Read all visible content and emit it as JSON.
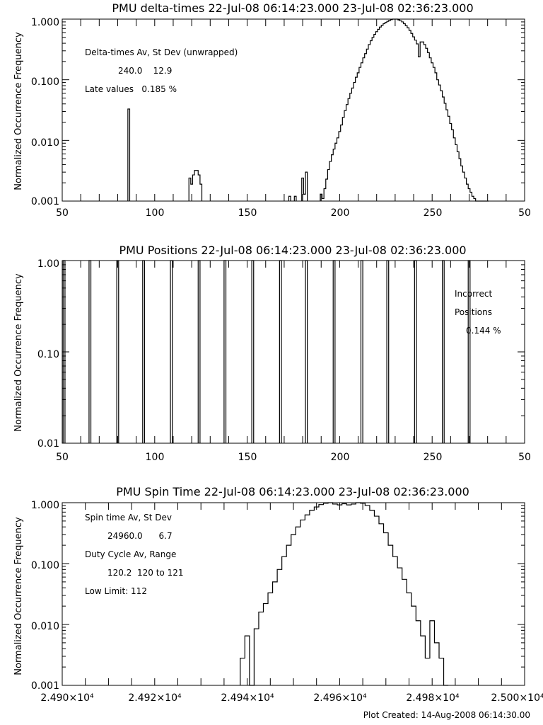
{
  "footer": "Plot Created: 14-Aug-2008 06:14:30.00",
  "chart_data": [
    {
      "type": "histogram-step",
      "title": "PMU delta-times 22-Jul-08 06:14:23.000 23-Jul-08 02:36:23.000",
      "ylabel": "Normalized Occurrence Frequency",
      "xlim": [
        50,
        280
      ],
      "ylim": [
        0.001,
        1.0
      ],
      "yscale": "log",
      "xticks": [
        "50",
        "100",
        "150",
        "200",
        "250",
        "50"
      ],
      "yticks": [
        "0.001",
        "0.010",
        "0.100",
        "1.000"
      ],
      "annotations": [
        {
          "text": "Delta-times Av, St Dev (unwrapped)"
        },
        {
          "text": "240.0    12.9"
        },
        {
          "text": "Late values   0.185 %"
        }
      ],
      "series": [
        {
          "x": [
            86,
            87,
            119,
            120,
            121,
            122,
            123,
            124,
            125,
            126,
            173,
            174,
            176,
            177,
            180,
            181,
            182,
            183,
            190,
            191,
            192,
            193,
            194,
            195,
            196,
            197,
            198,
            199,
            200,
            201,
            202,
            203,
            204,
            205,
            206,
            207,
            208,
            209,
            210,
            211,
            212,
            213,
            214,
            215,
            216,
            217,
            218,
            219,
            220,
            221,
            222,
            223,
            224,
            225,
            226,
            227,
            228,
            229,
            230,
            231,
            232,
            233,
            234,
            235,
            236,
            237,
            238,
            239,
            240,
            241,
            242,
            243,
            244,
            245,
            246,
            247,
            248,
            249,
            250,
            251,
            252,
            253,
            254,
            255,
            256,
            257,
            258,
            259,
            260,
            261,
            262,
            263,
            264,
            265,
            266,
            267,
            268,
            269,
            270,
            271,
            272,
            273,
            274,
            275,
            276,
            277,
            278,
            279,
            280
          ],
          "y": [
            0.033,
            0.0,
            0.0024,
            0.0019,
            0.0027,
            0.0032,
            0.0032,
            0.0027,
            0.0019,
            0.0,
            0.0012,
            0.0,
            0.0012,
            0.0,
            0.0024,
            0.0013,
            0.003,
            0.0,
            0.0013,
            0.0011,
            0.0016,
            0.0023,
            0.0033,
            0.0045,
            0.0058,
            0.0072,
            0.009,
            0.011,
            0.014,
            0.018,
            0.024,
            0.031,
            0.039,
            0.049,
            0.06,
            0.073,
            0.09,
            0.11,
            0.13,
            0.16,
            0.19,
            0.23,
            0.27,
            0.32,
            0.38,
            0.44,
            0.5,
            0.56,
            0.62,
            0.68,
            0.74,
            0.79,
            0.84,
            0.88,
            0.92,
            0.95,
            0.98,
            1.0,
            1.0,
            1.0,
            0.97,
            0.94,
            0.9,
            0.84,
            0.78,
            0.72,
            0.65,
            0.58,
            0.51,
            0.45,
            0.39,
            0.24,
            0.42,
            0.42,
            0.38,
            0.33,
            0.28,
            0.23,
            0.19,
            0.16,
            0.13,
            0.1,
            0.082,
            0.066,
            0.052,
            0.041,
            0.032,
            0.025,
            0.019,
            0.015,
            0.011,
            0.0085,
            0.0065,
            0.005,
            0.0038,
            0.003,
            0.0024,
            0.0019,
            0.0016,
            0.0014,
            0.0012,
            0.0011,
            0.001,
            0.001,
            0.001,
            0.001,
            0.001,
            0.001,
            0.001
          ]
        }
      ]
    },
    {
      "type": "histogram-step",
      "title": "PMU Positions 22-Jul-08 06:14:23.000 23-Jul-08 02:36:23.000",
      "ylabel": "Normalized Occurrence Frequency",
      "xlim": [
        50,
        300
      ],
      "ylim": [
        0.01,
        1.0
      ],
      "yscale": "log",
      "xticks": [
        "50",
        "100",
        "150",
        "200",
        "250",
        "50"
      ],
      "yticks": [
        "0.01",
        "0.10",
        "1.00"
      ],
      "annotations": [
        {
          "text": "Incorrect"
        },
        {
          "text": "Positions"
        },
        {
          "text": "0.144 %"
        }
      ],
      "spikes": [
        51,
        65,
        80,
        94,
        109,
        124,
        138,
        153,
        168,
        182,
        197,
        212,
        226,
        241,
        256,
        270
      ],
      "spike_value": 1.0
    },
    {
      "type": "histogram-step",
      "title": "PMU Spin Time 22-Jul-08 06:14:23.000 23-Jul-08 02:36:23.000",
      "ylabel": "Normalized Occurrence Frequency",
      "xlim": [
        24900,
        25000
      ],
      "ylim": [
        0.001,
        1.0
      ],
      "yscale": "log",
      "xticks": [
        "2.490×10⁴",
        "2.492×10⁴",
        "2.494×10⁴",
        "2.496×10⁴",
        "2.498×10⁴",
        "2.500×10⁴"
      ],
      "yticks": [
        "0.001",
        "0.010",
        "0.100",
        "1.000"
      ],
      "annotations": [
        {
          "text": "Spin time Av, St Dev"
        },
        {
          "text": "24960.0      6.7"
        },
        {
          "text": "Duty Cycle Av, Range"
        },
        {
          "text": "120.2  120 to 121"
        },
        {
          "text": "Low Limit: 112"
        }
      ],
      "series": [
        {
          "x": [
            24939,
            24940,
            24941,
            24942,
            24943,
            24944,
            24945,
            24946,
            24947,
            24948,
            24949,
            24950,
            24951,
            24952,
            24953,
            24954,
            24955,
            24956,
            24957,
            24958,
            24959,
            24960,
            24961,
            24962,
            24963,
            24964,
            24965,
            24966,
            24967,
            24968,
            24969,
            24970,
            24971,
            24972,
            24973,
            24974,
            24975,
            24976,
            24977,
            24978,
            24979,
            24980,
            24981,
            24982,
            24983
          ],
          "y": [
            0.0028,
            0.0065,
            0.001,
            0.0085,
            0.016,
            0.022,
            0.033,
            0.05,
            0.08,
            0.13,
            0.2,
            0.3,
            0.4,
            0.52,
            0.63,
            0.75,
            0.85,
            0.93,
            0.98,
            1.0,
            0.95,
            0.92,
            0.96,
            0.92,
            0.95,
            1.0,
            0.98,
            0.9,
            0.75,
            0.6,
            0.45,
            0.32,
            0.2,
            0.13,
            0.085,
            0.055,
            0.033,
            0.02,
            0.0115,
            0.0065,
            0.0028,
            0.0115,
            0.005,
            0.0028,
            0.001
          ]
        }
      ]
    }
  ]
}
